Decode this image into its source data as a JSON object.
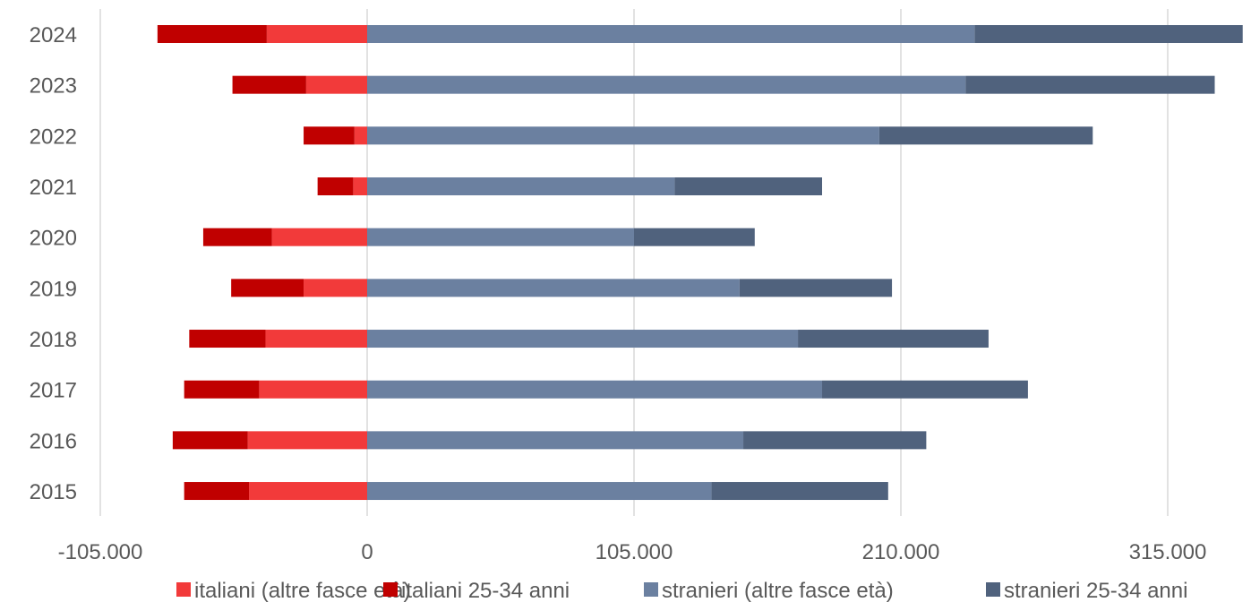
{
  "chart_data": {
    "type": "bar",
    "orientation": "horizontal",
    "stacked": true,
    "title": "",
    "xlabel": "",
    "ylabel": "",
    "categories": [
      "2024",
      "2023",
      "2022",
      "2021",
      "2020",
      "2019",
      "2018",
      "2017",
      "2016",
      "2015"
    ],
    "series": [
      {
        "name": "italiani (altre fasce età)",
        "color": "#f23a3a",
        "values": [
          -39500,
          -24000,
          -5000,
          -5500,
          -37500,
          -25000,
          -40000,
          -42500,
          -47000,
          -46500
        ]
      },
      {
        "name": "italiani 25-34 anni",
        "color": "#c00000",
        "values": [
          -43000,
          -29000,
          -20000,
          -14000,
          -27000,
          -28500,
          -30000,
          -29500,
          -29500,
          -25500
        ]
      },
      {
        "name": "stranieri (altre fasce età)",
        "color": "#6b80a0",
        "values": [
          239000,
          235500,
          201500,
          121000,
          105000,
          146500,
          169500,
          179000,
          148000,
          135500
        ]
      },
      {
        "name": "stranieri 25-34 anni",
        "color": "#50627d",
        "values": [
          105500,
          98000,
          84000,
          58000,
          47500,
          60000,
          75000,
          81000,
          72000,
          69500
        ]
      }
    ],
    "xlim": [
      -105000,
      345000
    ],
    "x_ticks": [
      -105000,
      0,
      105000,
      210000,
      315000
    ],
    "x_tick_labels": [
      "-105.000",
      "0",
      "105.000",
      "210.000",
      "315.000"
    ],
    "grid": "vertical",
    "legend_position": "bottom"
  }
}
